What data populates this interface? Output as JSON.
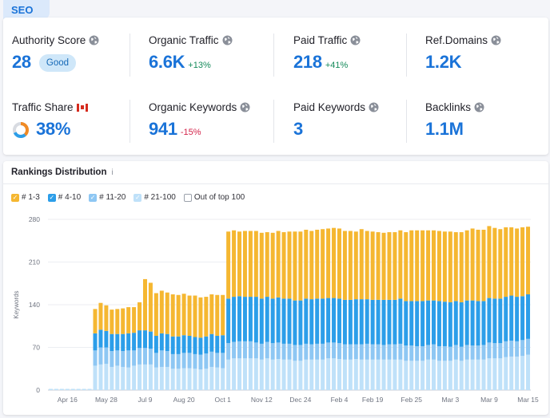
{
  "tab": {
    "label": "SEO"
  },
  "metrics": {
    "authority_score": {
      "label": "Authority Score",
      "value": "28",
      "badge": "Good"
    },
    "organic_traffic": {
      "label": "Organic Traffic",
      "value": "6.6K",
      "delta": "+13%"
    },
    "paid_traffic": {
      "label": "Paid Traffic",
      "value": "218",
      "delta": "+41%"
    },
    "ref_domains": {
      "label": "Ref.Domains",
      "value": "1.2K"
    },
    "traffic_share": {
      "label": "Traffic Share",
      "value": "38%",
      "share_fraction": 0.38
    },
    "organic_keywords": {
      "label": "Organic Keywords",
      "value": "941",
      "delta": "-15%"
    },
    "paid_keywords": {
      "label": "Paid Keywords",
      "value": "3"
    },
    "backlinks": {
      "label": "Backlinks",
      "value": "1.1M"
    }
  },
  "icons": {
    "globe": "globe-icon",
    "flag": "canada-flag-icon",
    "info": "info-icon",
    "donut": "traffic-share-donut-icon"
  },
  "rankings": {
    "title": "Rankings Distribution",
    "info_glyph": "i",
    "legend": [
      {
        "label": "# 1-3",
        "color": "#f5b731",
        "checked": true
      },
      {
        "label": "# 4-10",
        "color": "#2c9ee9",
        "checked": true
      },
      {
        "label": "# 11-20",
        "color": "#8ec7f3",
        "checked": true
      },
      {
        "label": "# 21-100",
        "color": "#bfe1f9",
        "checked": true
      },
      {
        "label": "Out of top 100",
        "color": "#ffffff",
        "checked": false
      }
    ]
  },
  "chart_data": {
    "type": "bar",
    "stacked": true,
    "ylabel": "Keywords",
    "ylim": [
      0,
      280
    ],
    "yticks": [
      0,
      70,
      140,
      210,
      280
    ],
    "grid": true,
    "legend_position": "top-left",
    "xtick_labels": [
      "Apr 16",
      "May 28",
      "Jul 9",
      "Aug 20",
      "Oct 1",
      "Nov 12",
      "Dec 24",
      "Feb 4",
      "Feb 19",
      "Feb 25",
      "Mar 3",
      "Mar 9",
      "Mar 15"
    ],
    "xtick_bar_index": [
      3,
      10,
      17,
      24,
      31,
      38,
      45,
      52,
      58,
      65,
      72,
      79,
      86
    ],
    "colors": {
      "r1_3": "#f5b731",
      "r4_10": "#2c9ee9",
      "r11_20": "#8ec7f3",
      "r21_100": "#bfe1f9"
    },
    "series": [
      {
        "name": "# 21-100",
        "values": [
          2,
          2,
          2,
          2,
          2,
          2,
          2,
          2,
          40,
          42,
          43,
          38,
          40,
          38,
          37,
          40,
          42,
          42,
          42,
          37,
          38,
          38,
          35,
          35,
          36,
          36,
          35,
          34,
          35,
          38,
          37,
          36,
          50,
          52,
          52,
          52,
          52,
          52,
          50,
          52,
          50,
          51,
          50,
          50,
          48,
          48,
          50,
          50,
          50,
          50,
          52,
          52,
          51,
          50,
          50,
          51,
          50,
          50,
          50,
          50,
          50,
          50,
          50,
          50,
          48,
          48,
          48,
          48,
          50,
          50,
          48,
          48,
          48,
          50,
          48,
          50,
          50,
          50,
          50,
          52,
          52,
          52,
          54,
          55,
          55,
          56,
          58
        ]
      },
      {
        "name": "# 11-20",
        "values": [
          0,
          0,
          0,
          0,
          0,
          0,
          0,
          0,
          25,
          28,
          27,
          26,
          25,
          26,
          28,
          25,
          27,
          27,
          26,
          24,
          27,
          26,
          24,
          24,
          25,
          25,
          24,
          24,
          25,
          25,
          24,
          25,
          27,
          27,
          28,
          28,
          28,
          26,
          26,
          27,
          27,
          27,
          26,
          26,
          26,
          26,
          26,
          25,
          26,
          26,
          26,
          26,
          26,
          25,
          25,
          24,
          25,
          26,
          25,
          25,
          24,
          25,
          25,
          26,
          25,
          25,
          24,
          24,
          24,
          25,
          24,
          24,
          23,
          24,
          23,
          24,
          23,
          23,
          24,
          26,
          25,
          25,
          26,
          26,
          25,
          26,
          26
        ]
      },
      {
        "name": "# 4-10",
        "values": [
          0,
          0,
          0,
          0,
          0,
          0,
          0,
          0,
          28,
          29,
          27,
          28,
          27,
          28,
          28,
          29,
          29,
          29,
          28,
          28,
          28,
          28,
          29,
          29,
          29,
          28,
          28,
          28,
          28,
          29,
          28,
          29,
          73,
          74,
          74,
          73,
          73,
          75,
          74,
          74,
          73,
          74,
          74,
          74,
          73,
          73,
          74,
          74,
          74,
          74,
          73,
          73,
          73,
          73,
          73,
          74,
          74,
          73,
          73,
          73,
          74,
          73,
          73,
          74,
          73,
          73,
          74,
          74,
          73,
          72,
          74,
          73,
          73,
          72,
          73,
          73,
          74,
          73,
          72,
          73,
          73,
          73,
          73,
          74,
          73,
          72,
          73
        ]
      },
      {
        "name": "# 1-3",
        "values": [
          0,
          0,
          0,
          0,
          0,
          0,
          0,
          0,
          40,
          44,
          42,
          40,
          41,
          42,
          43,
          42,
          46,
          84,
          80,
          70,
          70,
          68,
          69,
          68,
          68,
          66,
          68,
          66,
          65,
          65,
          67,
          66,
          110,
          109,
          106,
          108,
          108,
          108,
          108,
          106,
          108,
          109,
          109,
          110,
          113,
          113,
          113,
          112,
          113,
          114,
          114,
          115,
          115,
          113,
          113,
          111,
          115,
          112,
          112,
          111,
          110,
          111,
          111,
          112,
          113,
          116,
          116,
          116,
          115,
          115,
          115,
          115,
          116,
          113,
          115,
          115,
          118,
          117,
          117,
          118,
          116,
          114,
          114,
          112,
          112,
          113,
          111
        ]
      }
    ]
  }
}
